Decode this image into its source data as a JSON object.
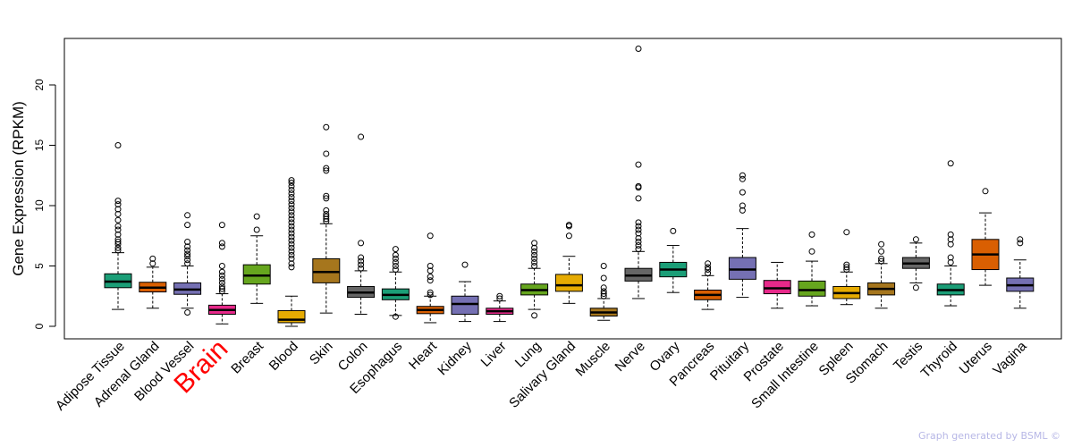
{
  "chart_data": {
    "type": "boxplot",
    "title": "",
    "xlabel": "",
    "ylabel": "Gene Expression (RPKM)",
    "ylim": [
      -1,
      24
    ],
    "yticks": [
      0,
      5,
      10,
      15,
      20
    ],
    "highlight": "Brain",
    "highlight_color": "#ff0000",
    "categories": [
      {
        "name": "Adipose Tissue",
        "color": "#1b9e77",
        "q1": 3.2,
        "median": 3.7,
        "q3": 4.35,
        "wlo": 1.4,
        "whi": 6.1,
        "outliers": [
          6.3,
          6.5,
          6.8,
          7.0,
          7.2,
          7.6,
          8.0,
          8.3,
          8.8,
          9.3,
          9.7,
          10.1,
          10.4,
          15.0
        ]
      },
      {
        "name": "Adrenal Gland",
        "color": "#d95f02",
        "q1": 2.85,
        "median": 3.2,
        "q3": 3.65,
        "wlo": 1.5,
        "whi": 4.9,
        "outliers": [
          5.2,
          5.6
        ]
      },
      {
        "name": "Blood Vessel",
        "color": "#7570b3",
        "q1": 2.65,
        "median": 3.05,
        "q3": 3.6,
        "wlo": 1.5,
        "whi": 5.0,
        "outliers": [
          1.15,
          5.2,
          5.5,
          5.8,
          6.0,
          6.3,
          6.6,
          7.0,
          8.4,
          9.2
        ]
      },
      {
        "name": "Brain",
        "color": "#e7298a",
        "q1": 1.0,
        "median": 1.35,
        "q3": 1.75,
        "wlo": 0.2,
        "whi": 2.7,
        "outliers": [
          2.9,
          3.1,
          3.3,
          3.6,
          3.9,
          4.2,
          4.5,
          5.0,
          6.6,
          6.9,
          8.4
        ]
      },
      {
        "name": "Breast",
        "color": "#66a61e",
        "q1": 3.5,
        "median": 4.2,
        "q3": 5.1,
        "wlo": 1.9,
        "whi": 7.5,
        "outliers": [
          8.0,
          9.1
        ]
      },
      {
        "name": "Blood",
        "color": "#e6ab02",
        "q1": 0.3,
        "median": 0.55,
        "q3": 1.3,
        "wlo": 0.0,
        "whi": 2.5,
        "outliers": [
          4.9,
          5.2,
          5.6,
          5.9,
          6.2,
          6.5,
          6.8,
          7.1,
          7.4,
          7.7,
          8.0,
          8.3,
          8.6,
          8.9,
          9.2,
          9.5,
          9.8,
          10.1,
          10.4,
          10.7,
          11.0,
          11.3,
          11.6,
          11.9,
          12.1
        ]
      },
      {
        "name": "Skin",
        "color": "#a6761d",
        "q1": 3.6,
        "median": 4.5,
        "q3": 5.6,
        "wlo": 1.1,
        "whi": 8.5,
        "outliers": [
          8.7,
          8.9,
          9.1,
          9.3,
          9.6,
          10.6,
          10.8,
          12.9,
          13.1,
          14.3,
          16.5
        ]
      },
      {
        "name": "Colon",
        "color": "#666666",
        "q1": 2.4,
        "median": 2.8,
        "q3": 3.3,
        "wlo": 1.0,
        "whi": 4.6,
        "outliers": [
          4.8,
          5.1,
          5.4,
          5.7,
          6.9,
          15.7
        ]
      },
      {
        "name": "Esophagus",
        "color": "#1b9e77",
        "q1": 2.2,
        "median": 2.6,
        "q3": 3.1,
        "wlo": 0.9,
        "whi": 4.5,
        "outliers": [
          0.8,
          4.7,
          5.0,
          5.3,
          5.6,
          5.9,
          6.4
        ]
      },
      {
        "name": "Heart",
        "color": "#d95f02",
        "q1": 1.05,
        "median": 1.35,
        "q3": 1.65,
        "wlo": 0.3,
        "whi": 2.5,
        "outliers": [
          2.6,
          2.8,
          3.8,
          4.1,
          4.6,
          5.0,
          7.5
        ]
      },
      {
        "name": "Kidney",
        "color": "#7570b3",
        "q1": 1.0,
        "median": 1.85,
        "q3": 2.5,
        "wlo": 0.4,
        "whi": 3.7,
        "outliers": [
          5.1
        ]
      },
      {
        "name": "Liver",
        "color": "#e7298a",
        "q1": 1.0,
        "median": 1.25,
        "q3": 1.5,
        "wlo": 0.4,
        "whi": 2.1,
        "outliers": [
          2.3,
          2.5
        ]
      },
      {
        "name": "Lung",
        "color": "#66a61e",
        "q1": 2.6,
        "median": 3.0,
        "q3": 3.5,
        "wlo": 1.4,
        "whi": 4.8,
        "outliers": [
          0.9,
          5.0,
          5.3,
          5.6,
          5.9,
          6.2,
          6.5,
          6.9
        ]
      },
      {
        "name": "Salivary Gland",
        "color": "#e6ab02",
        "q1": 2.9,
        "median": 3.4,
        "q3": 4.3,
        "wlo": 1.9,
        "whi": 5.8,
        "outliers": [
          7.5,
          8.3,
          8.4
        ]
      },
      {
        "name": "Muscle",
        "color": "#a6761d",
        "q1": 0.85,
        "median": 1.15,
        "q3": 1.5,
        "wlo": 0.5,
        "whi": 2.3,
        "outliers": [
          2.5,
          2.7,
          2.9,
          3.2,
          4.0,
          5.0
        ]
      },
      {
        "name": "Nerve",
        "color": "#666666",
        "q1": 3.75,
        "median": 4.2,
        "q3": 4.8,
        "wlo": 2.3,
        "whi": 6.2,
        "outliers": [
          6.4,
          6.7,
          7.0,
          7.3,
          7.7,
          8.0,
          8.3,
          8.6,
          10.6,
          11.5,
          11.6,
          13.4,
          23.0
        ]
      },
      {
        "name": "Ovary",
        "color": "#1b9e77",
        "q1": 4.1,
        "median": 4.7,
        "q3": 5.3,
        "wlo": 2.8,
        "whi": 6.7,
        "outliers": [
          7.9
        ]
      },
      {
        "name": "Pancreas",
        "color": "#d95f02",
        "q1": 2.2,
        "median": 2.6,
        "q3": 3.0,
        "wlo": 1.4,
        "whi": 4.2,
        "outliers": [
          4.4,
          4.7,
          4.9,
          5.2
        ]
      },
      {
        "name": "Pituitary",
        "color": "#7570b3",
        "q1": 3.9,
        "median": 4.7,
        "q3": 5.7,
        "wlo": 2.4,
        "whi": 8.1,
        "outliers": [
          9.6,
          10.0,
          11.1,
          12.2,
          12.5
        ]
      },
      {
        "name": "Prostate",
        "color": "#e7298a",
        "q1": 2.7,
        "median": 3.15,
        "q3": 3.8,
        "wlo": 1.5,
        "whi": 5.3,
        "outliers": []
      },
      {
        "name": "Small Intestine",
        "color": "#66a61e",
        "q1": 2.5,
        "median": 3.0,
        "q3": 3.75,
        "wlo": 1.7,
        "whi": 5.4,
        "outliers": [
          6.2,
          7.6
        ]
      },
      {
        "name": "Spleen",
        "color": "#e6ab02",
        "q1": 2.3,
        "median": 2.75,
        "q3": 3.3,
        "wlo": 1.8,
        "whi": 4.5,
        "outliers": [
          4.7,
          4.9,
          5.1,
          7.8
        ]
      },
      {
        "name": "Stomach",
        "color": "#a6761d",
        "q1": 2.6,
        "median": 3.1,
        "q3": 3.6,
        "wlo": 1.5,
        "whi": 5.2,
        "outliers": [
          5.4,
          5.6,
          6.2,
          6.8
        ]
      },
      {
        "name": "Testis",
        "color": "#666666",
        "q1": 4.8,
        "median": 5.2,
        "q3": 5.7,
        "wlo": 3.6,
        "whi": 6.9,
        "outliers": [
          3.2,
          7.2
        ]
      },
      {
        "name": "Thyroid",
        "color": "#1b9e77",
        "q1": 2.6,
        "median": 3.0,
        "q3": 3.5,
        "wlo": 1.7,
        "whi": 5.0,
        "outliers": [
          5.3,
          5.7,
          6.8,
          7.2,
          7.6,
          13.5
        ]
      },
      {
        "name": "Uterus",
        "color": "#d95f02",
        "q1": 4.7,
        "median": 5.95,
        "q3": 7.2,
        "wlo": 3.4,
        "whi": 9.4,
        "outliers": [
          11.2
        ]
      },
      {
        "name": "Vagina",
        "color": "#7570b3",
        "q1": 2.9,
        "median": 3.4,
        "q3": 4.0,
        "wlo": 1.5,
        "whi": 5.5,
        "outliers": [
          6.9,
          7.2
        ]
      }
    ]
  },
  "credit": "Graph generated by BSML ©"
}
